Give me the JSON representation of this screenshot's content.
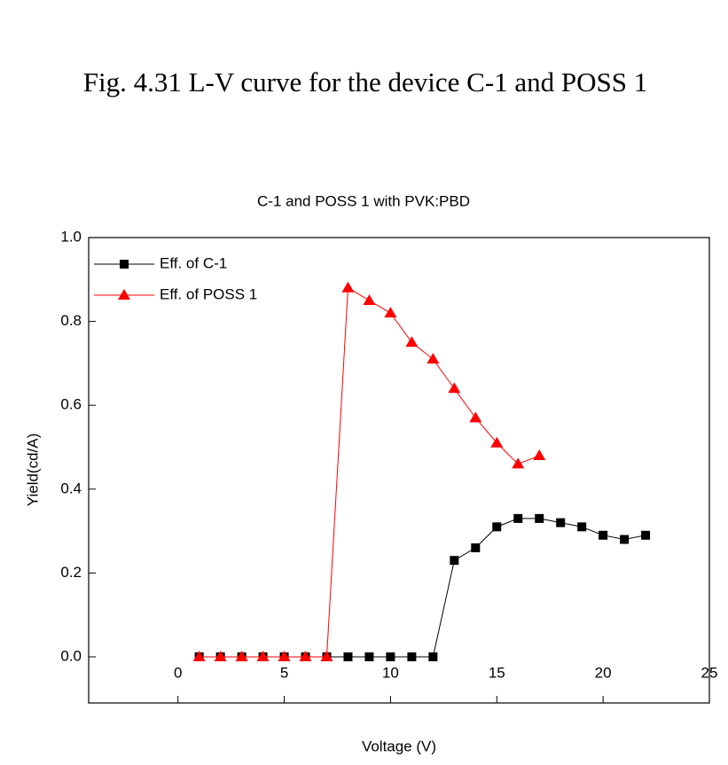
{
  "caption": "Fig. 4.31 L-V curve for the device C-1 and POSS 1",
  "chart_data": {
    "type": "line",
    "title": "C-1 and POSS 1 with PVK:PBD",
    "x_label": "Voltage (V)",
    "y_label": "Yield(cd/A)",
    "xlim": [
      -4.2,
      25
    ],
    "ylim": [
      -0.11,
      1.0
    ],
    "xticks": [
      0,
      5,
      10,
      15,
      20,
      25
    ],
    "yticks": [
      {
        "value": 0,
        "label": "0.0"
      },
      {
        "value": 0.2,
        "label": "0.2"
      },
      {
        "value": 0.4,
        "label": "0.4"
      },
      {
        "value": 0.6,
        "label": "0.6"
      },
      {
        "value": 0.8,
        "label": "0.8"
      },
      {
        "value": 1.0,
        "label": "1.0"
      }
    ],
    "legend": "upper left",
    "series": [
      {
        "name": "Eff. of C-1",
        "color": "#000000",
        "marker": "square",
        "x": [
          1,
          2,
          3,
          4,
          5,
          6,
          7,
          8,
          9,
          10,
          11,
          12,
          13,
          14,
          15,
          16,
          17,
          18,
          19,
          20,
          21,
          22
        ],
        "values": [
          0,
          0,
          0,
          0,
          0,
          0,
          0,
          0,
          0,
          0,
          0,
          0,
          0.23,
          0.26,
          0.31,
          0.33,
          0.33,
          0.32,
          0.31,
          0.29,
          0.28,
          0.29
        ]
      },
      {
        "name": "Eff. of POSS 1",
        "color": "#ff0000",
        "marker": "triangle",
        "x": [
          1,
          2,
          3,
          4,
          5,
          6,
          7,
          8,
          9,
          10,
          11,
          12,
          13,
          14,
          15,
          16,
          17
        ],
        "values": [
          0,
          0,
          0,
          0,
          0,
          0,
          0,
          0.88,
          0.85,
          0.82,
          0.75,
          0.71,
          0.64,
          0.57,
          0.51,
          0.46,
          0.48
        ]
      }
    ]
  }
}
